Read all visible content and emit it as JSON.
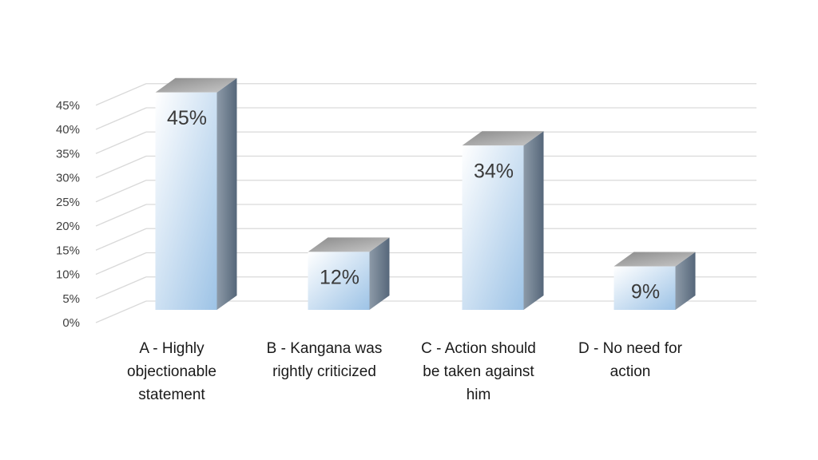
{
  "chart_data": {
    "type": "bar",
    "style": "3d-columns",
    "title": "",
    "xlabel": "",
    "ylabel": "",
    "categories": [
      "A - Highly objectionable statement",
      "B - Kangana was rightly criticized",
      "C - Action should be taken against him",
      "D - No need for action"
    ],
    "category_lines": [
      [
        "A - Highly",
        "objectionable",
        "statement"
      ],
      [
        "B - Kangana was",
        "rightly criticized"
      ],
      [
        "C - Action should",
        "be taken against",
        "him"
      ],
      [
        "D - No need for",
        "action"
      ]
    ],
    "values": [
      45,
      12,
      34,
      9
    ],
    "data_labels": [
      "45%",
      "12%",
      "34%",
      "9%"
    ],
    "yticks": [
      "0%",
      "5%",
      "10%",
      "15%",
      "20%",
      "25%",
      "30%",
      "35%",
      "40%",
      "45%"
    ],
    "ylim": [
      0,
      45
    ],
    "grid": true,
    "legend": "none",
    "colors": {
      "bar_front_light": "#ffffff",
      "bar_front_dark": "#9dc3e6",
      "bar_side": "#6f7f8f",
      "bar_top": "#a6a6a6",
      "grid": "#d9d9d9"
    }
  }
}
